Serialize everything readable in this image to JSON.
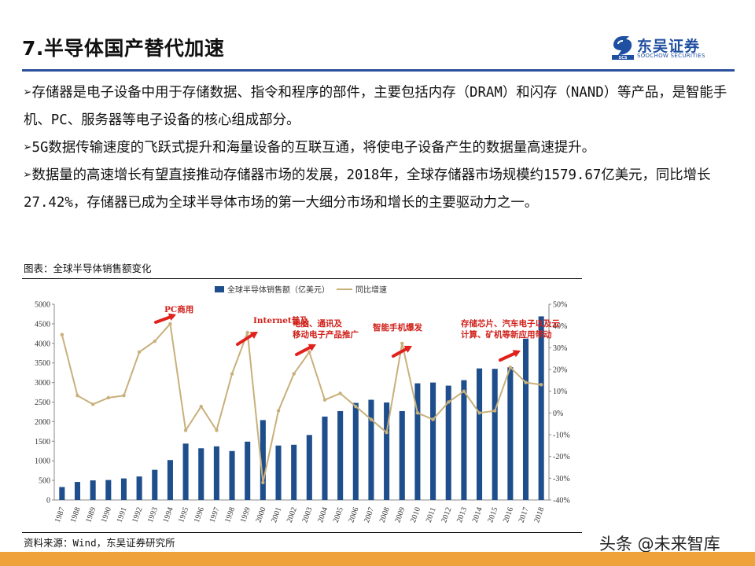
{
  "page": {
    "title": "7.半导体国产替代加速",
    "logo_cn": "东吴证券",
    "logo_en": "SOOCHOW SECURITIES",
    "bullets": [
      "存储器是电子设备中用于存储数据、指令和程序的部件，主要包括内存（DRAM）和闪存（NAND）等产品，是智能手机、PC、服务器等电子设备的核心组成部分。",
      "5G数据传输速度的飞跃式提升和海量设备的互联互通，将使电子设备产生的数据量高速提升。",
      "数据量的高速增长有望直接推动存储器市场的发展，2018年，全球存储器市场规模约1579.67亿美元，同比增长27.42%，存储器已成为全球半导体市场的第一大细分市场和增长的主要驱动力之一。"
    ],
    "bullet_marker": "➢",
    "caption": "图表：全球半导体销售额变化",
    "source": "资料来源：Wind，东吴证券研究所",
    "watermark": "头条 @未来智库",
    "colors": {
      "bar": "#1f4e8c",
      "line": "#c8b07a",
      "arrow": "#e0211c",
      "annotation": "#d0201a",
      "rule": "#2a4f9c",
      "bottom_bar": "#f0a23a"
    }
  },
  "chart_data": {
    "type": "bar",
    "categories": [
      "1987",
      "1988",
      "1989",
      "1990",
      "1991",
      "1992",
      "1993",
      "1994",
      "1995",
      "1996",
      "1997",
      "1998",
      "1999",
      "2000",
      "2001",
      "2002",
      "2003",
      "2004",
      "2005",
      "2006",
      "2007",
      "2008",
      "2009",
      "2010",
      "2011",
      "2012",
      "2013",
      "2014",
      "2015",
      "2016",
      "2017",
      "2018"
    ],
    "series": [
      {
        "name": "全球半导体销售额（亿美元）",
        "type": "bar",
        "axis": "left",
        "values": [
          330,
          460,
          500,
          510,
          550,
          600,
          770,
          1020,
          1440,
          1320,
          1370,
          1250,
          1490,
          2040,
          1390,
          1410,
          1660,
          2130,
          2270,
          2480,
          2560,
          2490,
          2270,
          2980,
          3000,
          2920,
          3060,
          3360,
          3350,
          3390,
          4120,
          4690
        ]
      },
      {
        "name": "同比增速",
        "type": "line",
        "axis": "right",
        "values": [
          36,
          8,
          4,
          7,
          8,
          28,
          33,
          41,
          -8,
          3,
          -8,
          18,
          37,
          -32,
          1,
          18,
          28,
          6,
          9,
          3,
          -3,
          -9,
          32,
          0,
          -3,
          5,
          10,
          0,
          1,
          21,
          14,
          13
        ]
      }
    ],
    "ylim_left": [
      0,
      5000
    ],
    "yticks_left": [
      0,
      500,
      1000,
      1500,
      2000,
      2500,
      3000,
      3500,
      4000,
      4500,
      5000
    ],
    "ylim_right": [
      -40,
      50
    ],
    "yticks_right": [
      "-40%",
      "-30%",
      "-20%",
      "-10%",
      "0%",
      "10%",
      "20%",
      "30%",
      "40%",
      "50%"
    ],
    "legend_position": "top",
    "annotations": [
      {
        "text": "PC商用",
        "year": "1994"
      },
      {
        "text": "Internet普及",
        "year": "1999"
      },
      {
        "text": "电脑、通讯及",
        "text2": "移动电子产品推广",
        "year": "2003"
      },
      {
        "text": "智能手机爆发",
        "year": "2009"
      },
      {
        "text": "存储芯片、汽车电子以及云",
        "text2": "计算、矿机等新应用带动",
        "year": "2015"
      }
    ]
  }
}
